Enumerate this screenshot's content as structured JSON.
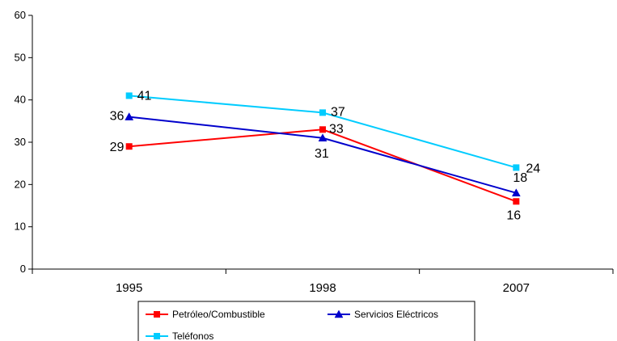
{
  "chart_data": {
    "type": "line",
    "categories": [
      "1995",
      "1998",
      "2007"
    ],
    "ylim": [
      0,
      60
    ],
    "yticks": [
      0,
      10,
      20,
      30,
      40,
      50,
      60
    ],
    "grid": false,
    "legend_position": "bottom",
    "series": [
      {
        "name": "Petróleo/Combustible",
        "values": [
          29,
          33,
          16
        ],
        "color": "#ff0000",
        "marker": "square"
      },
      {
        "name": "Servicios Eléctricos",
        "values": [
          36,
          31,
          18
        ],
        "color": "#0000cc",
        "marker": "triangle"
      },
      {
        "name": "Teléfonos",
        "values": [
          41,
          37,
          24
        ],
        "color": "#00ccff",
        "marker": "square"
      }
    ]
  }
}
